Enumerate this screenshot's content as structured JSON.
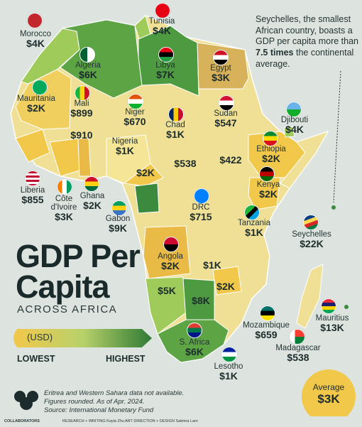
{
  "colors": {
    "lowest": "#f4e597",
    "highest": "#3b8a3d",
    "background": "#dde4df",
    "average": "#f2c84b"
  },
  "title_line1": "GDP Per",
  "title_line2": "Capita",
  "subtitle": "ACROSS AFRICA",
  "legend": {
    "unit": "(USD)",
    "lowest": "LOWEST",
    "highest": "HIGHEST"
  },
  "callout": {
    "part1": "Seychelles, the smallest African country, boasts a GDP per capita more than ",
    "emph": "7.5 times",
    "part2": " the continental average."
  },
  "average": {
    "label": "Average",
    "value": "$3K"
  },
  "notes": [
    "Eritrea and Western Sahara data not available.",
    "Figures rounded. As of Apr. 2024.",
    "Source: International Monetary Fund"
  ],
  "credits": {
    "brand": "COLLABORATORS",
    "research": "RESEARCH + WRITING Kayla Zhu",
    "design": "ART DIRECTION + DESIGN Sabrina Lam"
  },
  "countries": [
    {
      "name": "Morocco",
      "value": "$4K"
    },
    {
      "name": "Tunisia",
      "value": "$4K"
    },
    {
      "name": "Algeria",
      "value": "$6K"
    },
    {
      "name": "Libya",
      "value": "$7K"
    },
    {
      "name": "Egypt",
      "value": "$3K"
    },
    {
      "name": "Mauritania",
      "value": "$2K"
    },
    {
      "name": "Mali",
      "value": "$899"
    },
    {
      "name": "Niger",
      "value": "$670"
    },
    {
      "name": "Chad",
      "value": "$1K"
    },
    {
      "name": "Sudan",
      "value": "$547"
    },
    {
      "name": "Djibouti",
      "value": "$4K"
    },
    {
      "name": "",
      "value": "$910"
    },
    {
      "name": "Nigeria",
      "value": "$1K"
    },
    {
      "name": "Ethiopia",
      "value": "$2K"
    },
    {
      "name": "",
      "value": "$2K"
    },
    {
      "name": "",
      "value": "$538"
    },
    {
      "name": "",
      "value": "$422"
    },
    {
      "name": "Liberia",
      "value": "$855"
    },
    {
      "name": "Côte d'Ivoire",
      "value": "$3K"
    },
    {
      "name": "Ghana",
      "value": "$2K"
    },
    {
      "name": "Gabon",
      "value": "$9K"
    },
    {
      "name": "DRC",
      "value": "$715"
    },
    {
      "name": "Kenya",
      "value": "$2K"
    },
    {
      "name": "Tanzania",
      "value": "$1K"
    },
    {
      "name": "Seychelles",
      "value": "$22K"
    },
    {
      "name": "Angola",
      "value": "$2K"
    },
    {
      "name": "",
      "value": "$1K"
    },
    {
      "name": "",
      "value": "$2K"
    },
    {
      "name": "",
      "value": "$5K"
    },
    {
      "name": "",
      "value": "$8K"
    },
    {
      "name": "Mauritius",
      "value": "$13K"
    },
    {
      "name": "Mozambique",
      "value": "$659"
    },
    {
      "name": "S. Africa",
      "value": "$6K"
    },
    {
      "name": "Madagascar",
      "value": "$538"
    },
    {
      "name": "Lesotho",
      "value": "$1K"
    }
  ]
}
